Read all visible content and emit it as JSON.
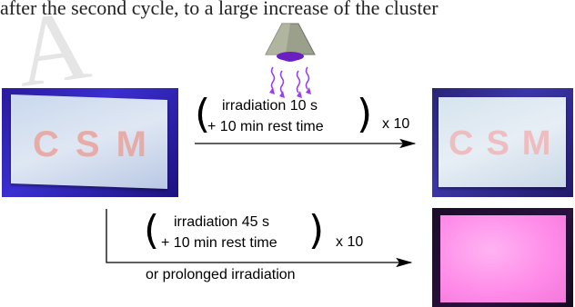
{
  "caption": {
    "top_text": "after the second cycle, to a large increase of the cluster"
  },
  "watermark": {
    "text": "A"
  },
  "reaction1": {
    "line1": "irradiation 10 s",
    "line2": "+ 10 min rest time",
    "multiplier": "x 10"
  },
  "reaction2": {
    "line1": "irradiation 45 s",
    "line2": "+ 10 min rest time",
    "multiplier": "x 10",
    "alt": "or prolonged irradiation"
  },
  "photos": {
    "initial_letters": "CSM",
    "after_letters": "CSM"
  },
  "colors": {
    "uv_purple": "#9b3df0",
    "lamp_grey": "#9aa08c",
    "glow_pink": "#ff8ae8"
  }
}
